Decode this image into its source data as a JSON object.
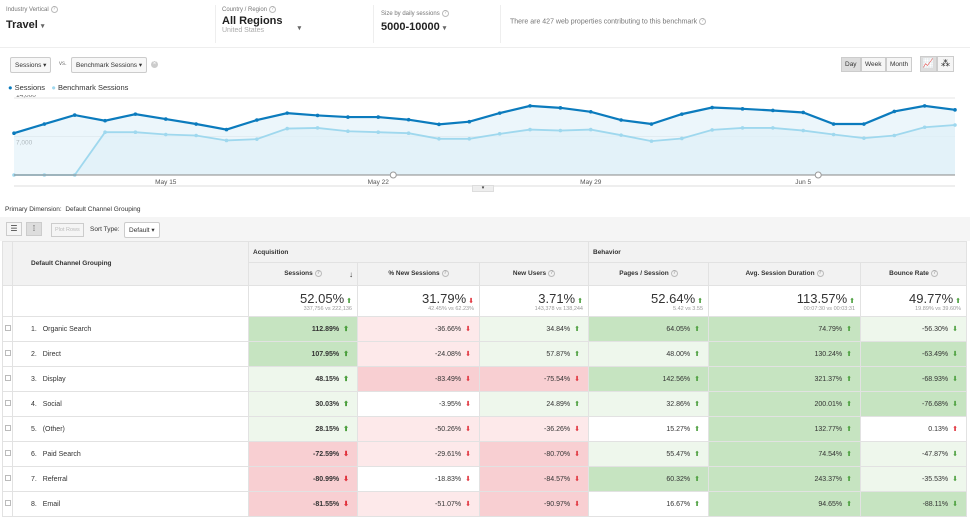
{
  "filters": {
    "industry": {
      "label": "Industry Vertical",
      "value": "Travel"
    },
    "region": {
      "label": "Country / Region",
      "value": "All Regions",
      "sub": "United States"
    },
    "size": {
      "label": "Size by daily sessions",
      "value": "5000-10000"
    },
    "info": "There are 427 web properties contributing to this benchmark"
  },
  "chart_controls": {
    "metric1": "Sessions",
    "vs": "vs.",
    "metric2": "Benchmark Sessions",
    "day": "Day",
    "week": "Week",
    "month": "Month",
    "selected": "Day"
  },
  "chart_data": {
    "type": "area",
    "y_ticks": [
      "14,000",
      "7,000"
    ],
    "ylim": [
      0,
      14000
    ],
    "x_ticks": [
      "May 15",
      "May 22",
      "May 29",
      "Jun 5"
    ],
    "x": [
      "May 10",
      "May 11",
      "May 12",
      "May 13",
      "May 14",
      "May 15",
      "May 16",
      "May 17",
      "May 18",
      "May 19",
      "May 20",
      "May 21",
      "May 22",
      "May 23",
      "May 24",
      "May 25",
      "May 26",
      "May 27",
      "May 28",
      "May 29",
      "May 30",
      "May 31",
      "Jun 1",
      "Jun 2",
      "Jun 3",
      "Jun 4",
      "Jun 5",
      "Jun 6",
      "Jun 7",
      "Jun 8",
      "Jun 9",
      "Jun 10"
    ],
    "series": [
      {
        "name": "Sessions",
        "color": "#0b7bbd",
        "values": [
          7600,
          9270,
          10890,
          9870,
          11070,
          10170,
          9270,
          8260,
          9990,
          11250,
          10830,
          10530,
          10530,
          10050,
          9210,
          9690,
          11250,
          12560,
          12210,
          11490,
          9990,
          9270,
          11070,
          12270,
          12030,
          11730,
          11370,
          9270,
          9270,
          11550,
          12560,
          11850
        ]
      },
      {
        "name": "Benchmark Sessions",
        "color": "#9fd8ee",
        "values": [
          0,
          0,
          0,
          7780,
          7780,
          7360,
          7180,
          6280,
          6520,
          8440,
          8560,
          7960,
          7780,
          7600,
          6580,
          6580,
          7480,
          8260,
          8080,
          8260,
          7240,
          6160,
          6640,
          8200,
          8560,
          8560,
          8080,
          7360,
          6700,
          7180,
          8680,
          9090
        ]
      }
    ]
  },
  "dimension": {
    "label": "Primary Dimension:",
    "value": "Default Channel Grouping"
  },
  "toolbar": {
    "plot_rows": "Plot Rows",
    "sort_label": "Sort Type:",
    "sort_value": "Default"
  },
  "table": {
    "dim_header": "Default Channel Grouping",
    "groups": [
      "Acquisition",
      "Behavior"
    ],
    "columns": [
      "Sessions",
      "% New Sessions",
      "New Users",
      "Pages / Session",
      "Avg. Session Duration",
      "Bounce Rate"
    ],
    "totals": [
      {
        "v": "52.05%",
        "sub": "337,756 vs 222,136",
        "a": "up",
        "c": "g"
      },
      {
        "v": "31.79%",
        "sub": "42.45% vs 62.23%",
        "a": "down",
        "c": "r"
      },
      {
        "v": "3.71%",
        "sub": "143,378 vs 138,244",
        "a": "up",
        "c": "g"
      },
      {
        "v": "52.64%",
        "sub": "5.42 vs 3.55",
        "a": "up",
        "c": "g"
      },
      {
        "v": "113.57%",
        "sub": "00:07:30 vs 00:03:31",
        "a": "up",
        "c": "g"
      },
      {
        "v": "49.77%",
        "sub": "19.89% vs 39.60%",
        "a": "up",
        "c": "g"
      }
    ],
    "rows": [
      {
        "n": "1.",
        "name": "Organic Search",
        "cells": [
          [
            "112.89%",
            "up",
            "g",
            "sg"
          ],
          [
            "-36.66%",
            "down",
            "r",
            "lr"
          ],
          [
            "34.84%",
            "up",
            "g",
            "lg"
          ],
          [
            "64.05%",
            "up",
            "g",
            "sg"
          ],
          [
            "74.79%",
            "up",
            "g",
            "sg"
          ],
          [
            "-56.30%",
            "down",
            "g",
            "lg"
          ]
        ]
      },
      {
        "n": "2.",
        "name": "Direct",
        "cells": [
          [
            "107.95%",
            "up",
            "g",
            "sg"
          ],
          [
            "-24.08%",
            "down",
            "r",
            "lr"
          ],
          [
            "57.87%",
            "up",
            "g",
            "lg"
          ],
          [
            "48.00%",
            "up",
            "g",
            "lg"
          ],
          [
            "130.24%",
            "up",
            "g",
            "sg"
          ],
          [
            "-63.49%",
            "down",
            "g",
            "sg"
          ]
        ]
      },
      {
        "n": "3.",
        "name": "Display",
        "cells": [
          [
            "48.15%",
            "up",
            "g",
            "lg"
          ],
          [
            "-83.49%",
            "down",
            "r",
            "sr"
          ],
          [
            "-75.54%",
            "down",
            "r",
            "sr"
          ],
          [
            "142.56%",
            "up",
            "g",
            "sg"
          ],
          [
            "321.37%",
            "up",
            "g",
            "sg"
          ],
          [
            "-68.93%",
            "down",
            "g",
            "sg"
          ]
        ]
      },
      {
        "n": "4.",
        "name": "Social",
        "cells": [
          [
            "30.03%",
            "up",
            "g",
            "lg"
          ],
          [
            "-3.95%",
            "down",
            "r",
            "w"
          ],
          [
            "24.89%",
            "up",
            "g",
            "lg"
          ],
          [
            "32.86%",
            "up",
            "g",
            "lg"
          ],
          [
            "200.01%",
            "up",
            "g",
            "sg"
          ],
          [
            "-76.68%",
            "down",
            "g",
            "sg"
          ]
        ]
      },
      {
        "n": "5.",
        "name": "(Other)",
        "cells": [
          [
            "28.15%",
            "up",
            "g",
            "lg"
          ],
          [
            "-50.26%",
            "down",
            "r",
            "lr"
          ],
          [
            "-36.26%",
            "down",
            "r",
            "lr"
          ],
          [
            "15.27%",
            "up",
            "g",
            "w"
          ],
          [
            "132.77%",
            "up",
            "g",
            "sg"
          ],
          [
            "0.13%",
            "up",
            "r",
            "w"
          ]
        ]
      },
      {
        "n": "6.",
        "name": "Paid Search",
        "cells": [
          [
            "-72.59%",
            "down",
            "r",
            "sr"
          ],
          [
            "-29.61%",
            "down",
            "r",
            "lr"
          ],
          [
            "-80.70%",
            "down",
            "r",
            "sr"
          ],
          [
            "55.47%",
            "up",
            "g",
            "lg"
          ],
          [
            "74.54%",
            "up",
            "g",
            "sg"
          ],
          [
            "-47.87%",
            "down",
            "g",
            "lg"
          ]
        ]
      },
      {
        "n": "7.",
        "name": "Referral",
        "cells": [
          [
            "-80.99%",
            "down",
            "r",
            "sr"
          ],
          [
            "-18.83%",
            "down",
            "r",
            "w"
          ],
          [
            "-84.57%",
            "down",
            "r",
            "sr"
          ],
          [
            "60.32%",
            "up",
            "g",
            "sg"
          ],
          [
            "243.37%",
            "up",
            "g",
            "sg"
          ],
          [
            "-35.53%",
            "down",
            "g",
            "lg"
          ]
        ]
      },
      {
        "n": "8.",
        "name": "Email",
        "cells": [
          [
            "-81.55%",
            "down",
            "r",
            "sr"
          ],
          [
            "-51.07%",
            "down",
            "r",
            "lr"
          ],
          [
            "-90.97%",
            "down",
            "r",
            "sr"
          ],
          [
            "16.67%",
            "up",
            "g",
            "w"
          ],
          [
            "94.65%",
            "up",
            "g",
            "sg"
          ],
          [
            "-88.11%",
            "down",
            "g",
            "sg"
          ]
        ]
      }
    ]
  }
}
